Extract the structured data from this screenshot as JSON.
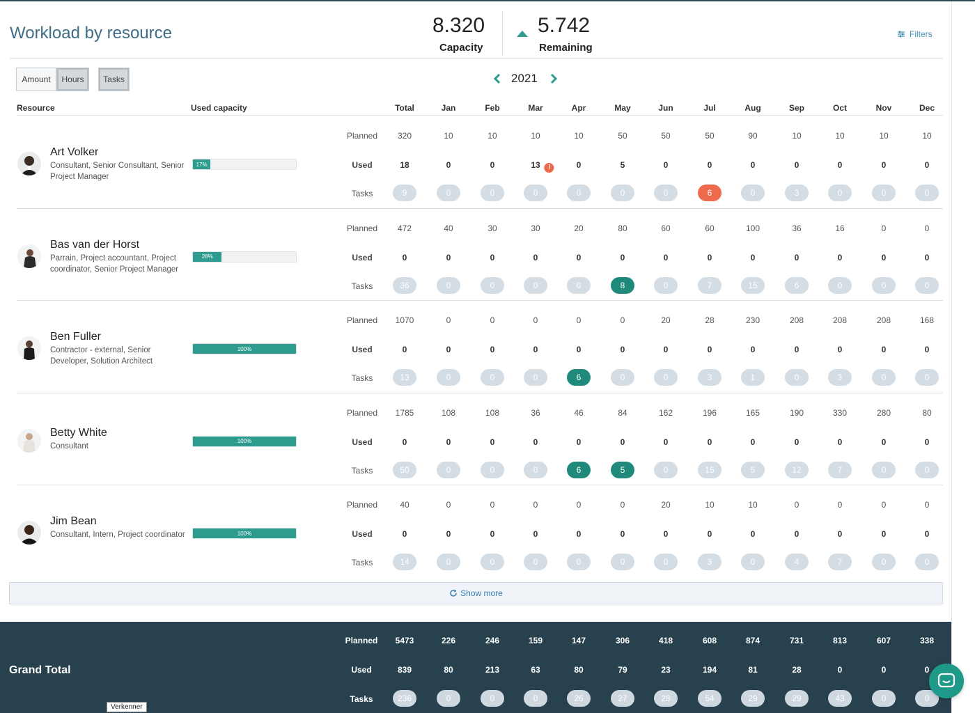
{
  "header": {
    "title": "Workload by resource",
    "capacity_value": "8.320",
    "capacity_label": "Capacity",
    "remaining_value": "5.742",
    "remaining_label": "Remaining",
    "filters_label": "Filters"
  },
  "toolbar": {
    "amount_label": "Amount",
    "hours_label": "Hours",
    "tasks_label": "Tasks",
    "year": "2021"
  },
  "columns": {
    "resource": "Resource",
    "used_capacity": "Used capacity",
    "total": "Total",
    "months": [
      "Jan",
      "Feb",
      "Mar",
      "Apr",
      "May",
      "Jun",
      "Jul",
      "Aug",
      "Sep",
      "Oct",
      "Nov",
      "Dec"
    ]
  },
  "row_labels": {
    "planned": "Planned",
    "used": "Used",
    "tasks": "Tasks"
  },
  "resources": [
    {
      "name": "Art Volker",
      "roles": "Consultant, Senior Consultant, Senior Project Manager",
      "capacity_pct": 17,
      "capacity_label": "17%",
      "planned": [
        "320",
        "10",
        "10",
        "10",
        "10",
        "50",
        "50",
        "50",
        "90",
        "10",
        "10",
        "10",
        "10"
      ],
      "used": [
        "18",
        "0",
        "0",
        "13",
        "0",
        "5",
        "0",
        "0",
        "0",
        "0",
        "0",
        "0",
        "0"
      ],
      "used_warning_col": 3,
      "tasks": [
        "9",
        "0",
        "0",
        "0",
        "0",
        "0",
        "0",
        "6",
        "0",
        "3",
        "0",
        "0",
        "0"
      ],
      "task_highlight": {
        "7": "orange"
      }
    },
    {
      "name": "Bas van der Horst",
      "roles": "Parrain, Project accountant, Project coordinator, Senior Project Manager",
      "capacity_pct": 28,
      "capacity_label": "28%",
      "planned": [
        "472",
        "40",
        "30",
        "30",
        "20",
        "80",
        "60",
        "60",
        "100",
        "36",
        "16",
        "0",
        "0"
      ],
      "used": [
        "0",
        "0",
        "0",
        "0",
        "0",
        "0",
        "0",
        "0",
        "0",
        "0",
        "0",
        "0",
        "0"
      ],
      "used_warning_col": -1,
      "tasks": [
        "36",
        "0",
        "0",
        "0",
        "0",
        "8",
        "0",
        "7",
        "15",
        "6",
        "0",
        "0",
        "0"
      ],
      "task_highlight": {
        "5": "teal"
      }
    },
    {
      "name": "Ben Fuller",
      "roles": "Contractor - external, Senior Developer, Solution Architect",
      "capacity_pct": 100,
      "capacity_label": "100%",
      "planned": [
        "1070",
        "0",
        "0",
        "0",
        "0",
        "0",
        "20",
        "28",
        "230",
        "208",
        "208",
        "208",
        "168"
      ],
      "used": [
        "0",
        "0",
        "0",
        "0",
        "0",
        "0",
        "0",
        "0",
        "0",
        "0",
        "0",
        "0",
        "0"
      ],
      "used_warning_col": -1,
      "tasks": [
        "13",
        "0",
        "0",
        "0",
        "6",
        "0",
        "0",
        "3",
        "1",
        "0",
        "3",
        "0",
        "0"
      ],
      "task_highlight": {
        "4": "teal"
      }
    },
    {
      "name": "Betty White",
      "roles": "Consultant",
      "capacity_pct": 100,
      "capacity_label": "100%",
      "planned": [
        "1785",
        "108",
        "108",
        "36",
        "46",
        "84",
        "162",
        "196",
        "165",
        "190",
        "330",
        "280",
        "80"
      ],
      "used": [
        "0",
        "0",
        "0",
        "0",
        "0",
        "0",
        "0",
        "0",
        "0",
        "0",
        "0",
        "0",
        "0"
      ],
      "used_warning_col": -1,
      "tasks": [
        "50",
        "0",
        "0",
        "0",
        "6",
        "5",
        "0",
        "15",
        "5",
        "12",
        "7",
        "0",
        "0"
      ],
      "task_highlight": {
        "4": "teal",
        "5": "teal"
      }
    },
    {
      "name": "Jim Bean",
      "roles": "Consultant, Intern, Project coordinator",
      "capacity_pct": 100,
      "capacity_label": "100%",
      "planned": [
        "40",
        "0",
        "0",
        "0",
        "0",
        "0",
        "20",
        "10",
        "10",
        "0",
        "0",
        "0",
        "0"
      ],
      "used": [
        "0",
        "0",
        "0",
        "0",
        "0",
        "0",
        "0",
        "0",
        "0",
        "0",
        "0",
        "0",
        "0"
      ],
      "used_warning_col": -1,
      "tasks": [
        "14",
        "0",
        "0",
        "0",
        "0",
        "0",
        "0",
        "3",
        "0",
        "4",
        "7",
        "0",
        "0"
      ],
      "task_highlight": {}
    }
  ],
  "show_more_label": "Show more",
  "grand_total": {
    "title": "Grand Total",
    "planned": [
      "5473",
      "226",
      "246",
      "159",
      "147",
      "306",
      "418",
      "608",
      "874",
      "731",
      "813",
      "607",
      "338"
    ],
    "used": [
      "839",
      "80",
      "213",
      "63",
      "80",
      "79",
      "23",
      "194",
      "81",
      "28",
      "0",
      "0",
      "0"
    ],
    "tasks": [
      "236",
      "0",
      "0",
      "0",
      "26",
      "27",
      "28",
      "54",
      "29",
      "29",
      "43",
      "0",
      "0"
    ]
  },
  "tooltip_text": "Verkenner",
  "colors": {
    "accent": "#2d9c8e",
    "title_blue": "#3f6d87",
    "pill_grey": "#d4dce4",
    "pill_teal": "#1f8a7b",
    "pill_orange": "#ee6a4c",
    "footer_bg": "#27424e"
  }
}
